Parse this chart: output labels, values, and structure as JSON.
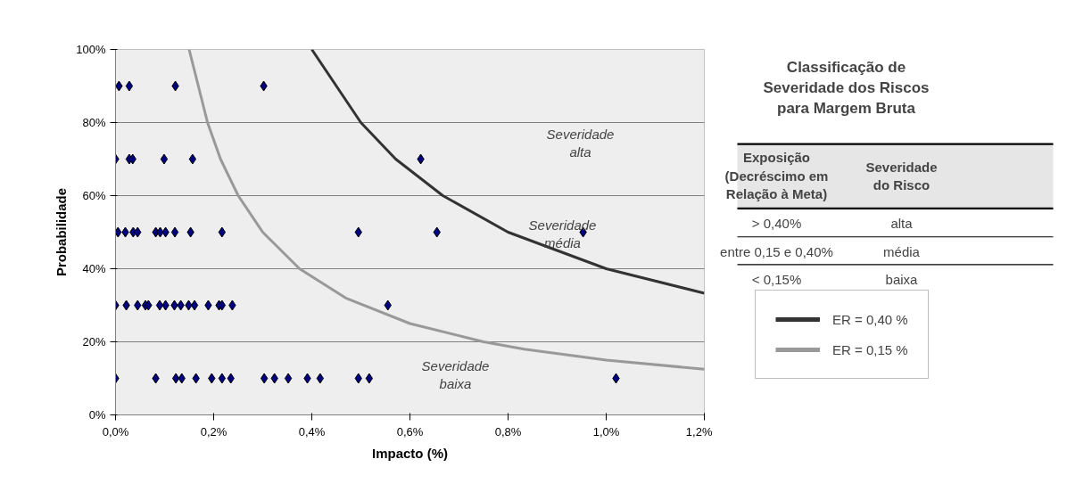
{
  "chart_data": {
    "type": "scatter",
    "title": "Classificação de\nSeveridade dos Riscos\npara Margem Bruta",
    "xlabel": "Impacto (%)",
    "ylabel": "Probabilidade",
    "xlim": [
      0,
      1.2
    ],
    "xticks": [
      {
        "value": 0,
        "label": "0,0%"
      },
      {
        "value": 0.2,
        "label": "0,2%"
      },
      {
        "value": 0.4,
        "label": "0,4%"
      },
      {
        "value": 0.6,
        "label": "0,6%"
      },
      {
        "value": 0.8,
        "label": "0,8%"
      },
      {
        "value": 1.0,
        "label": "1,0%"
      },
      {
        "value": 1.2,
        "label": "1,2%"
      }
    ],
    "ylim": [
      0,
      100
    ],
    "yticks": [
      {
        "value": 0,
        "label": "0%"
      },
      {
        "value": 20,
        "label": "20%"
      },
      {
        "value": 40,
        "label": "40%"
      },
      {
        "value": 60,
        "label": "60%"
      },
      {
        "value": 80,
        "label": "80%"
      },
      {
        "value": 100,
        "label": "100%"
      }
    ],
    "grid": "y",
    "legend": "right",
    "marker": "diamond",
    "series": [
      {
        "color": "#000080",
        "x": [
          0.007,
          0.028,
          0.122,
          0.302,
          0.0,
          0.028,
          0.035,
          0.099,
          0.157,
          0.622,
          0.005,
          0.02,
          0.036,
          0.045,
          0.082,
          0.091,
          0.102,
          0.121,
          0.153,
          0.217,
          0.495,
          0.655,
          0.953,
          0.0,
          0.022,
          0.045,
          0.061,
          0.067,
          0.09,
          0.102,
          0.12,
          0.133,
          0.149,
          0.161,
          0.189,
          0.211,
          0.217,
          0.238,
          0.555,
          0.0,
          0.082,
          0.123,
          0.135,
          0.164,
          0.196,
          0.217,
          0.235,
          0.303,
          0.324,
          0.352,
          0.391,
          0.417,
          0.495,
          0.517,
          1.02
        ],
        "values": [
          90,
          90,
          90,
          90,
          70,
          70,
          70,
          70,
          70,
          70,
          50,
          50,
          50,
          50,
          50,
          50,
          50,
          50,
          50,
          50,
          50,
          50,
          50,
          30,
          30,
          30,
          30,
          30,
          30,
          30,
          30,
          30,
          30,
          30,
          30,
          30,
          30,
          30,
          30,
          10,
          10,
          10,
          10,
          10,
          10,
          10,
          10,
          10,
          10,
          10,
          10,
          10,
          10,
          10,
          10
        ]
      },
      {
        "type": "line",
        "name": "ER = 0,40 %",
        "color": "#333333",
        "marker": "none",
        "x": [
          0.4,
          0.5,
          0.571,
          0.667,
          0.8,
          1.0,
          1.2
        ],
        "values": [
          100,
          80,
          70,
          60,
          50,
          40,
          33.3
        ]
      },
      {
        "type": "line",
        "name": "ER = 0,15 %",
        "color": "#999999",
        "marker": "none",
        "x": [
          0.15,
          0.1875,
          0.214,
          0.25,
          0.3,
          0.375,
          0.469,
          0.6,
          0.75,
          0.833,
          1.0,
          1.2
        ],
        "values": [
          100,
          80,
          70,
          60,
          50,
          40,
          32,
          25,
          20,
          18,
          15,
          12.5
        ]
      }
    ],
    "annotations": [
      "Severidade\nalta",
      "Severidade\nmédia",
      "Severidade\nbaixa",
      "Exposição\n(Decréscimo em\nRelação à Meta)",
      "Severidade\ndo Risco",
      "> 0,40%",
      "alta",
      "entre 0,15 e 0,40%",
      "média",
      "< 0,15%",
      "baixa"
    ]
  }
}
